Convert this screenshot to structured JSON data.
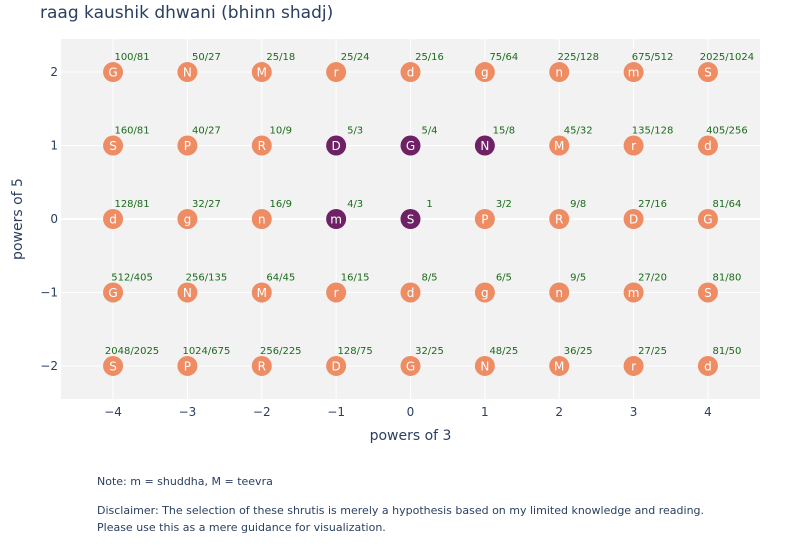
{
  "title": "raag kaushik dhwani (bhinn shadj)",
  "note": "Note: m = shuddha, M = teevra",
  "disclaimer_line1": "Disclaimer: The selection of these shrutis is merely a hypothesis based on my limited knowledge and reading.",
  "disclaimer_line2": "Please use this as a mere guidance for visualization.",
  "colors": {
    "plot_bg": "#f2f2f2",
    "grid": "#ffffff",
    "unselected": "#ee8c64",
    "selected": "#6e2164",
    "ratio_text": "#1b6b1b",
    "text": "#2a3f5f"
  },
  "chart_data": {
    "type": "scatter",
    "xlabel": "powers of 3",
    "ylabel": "powers of 5",
    "xlim": [
      -4.7,
      4.7
    ],
    "ylim": [
      -2.45,
      2.45
    ],
    "xticks": [
      -4,
      -3,
      -2,
      -1,
      0,
      1,
      2,
      3,
      4
    ],
    "yticks": [
      -2,
      -1,
      0,
      1,
      2
    ],
    "xtick_labels": [
      "−4",
      "−3",
      "−2",
      "−1",
      "0",
      "1",
      "2",
      "3",
      "4"
    ],
    "ytick_labels": [
      "−2",
      "−1",
      "0",
      "1",
      "2"
    ],
    "grid": true,
    "legend": false,
    "points": [
      {
        "x": -4,
        "y": 2,
        "swara": "G",
        "ratio": "100/81",
        "selected": false
      },
      {
        "x": -3,
        "y": 2,
        "swara": "N",
        "ratio": "50/27",
        "selected": false
      },
      {
        "x": -2,
        "y": 2,
        "swara": "M",
        "ratio": "25/18",
        "selected": false
      },
      {
        "x": -1,
        "y": 2,
        "swara": "r",
        "ratio": "25/24",
        "selected": false
      },
      {
        "x": 0,
        "y": 2,
        "swara": "d",
        "ratio": "25/16",
        "selected": false
      },
      {
        "x": 1,
        "y": 2,
        "swara": "g",
        "ratio": "75/64",
        "selected": false
      },
      {
        "x": 2,
        "y": 2,
        "swara": "n",
        "ratio": "225/128",
        "selected": false
      },
      {
        "x": 3,
        "y": 2,
        "swara": "m",
        "ratio": "675/512",
        "selected": false
      },
      {
        "x": 4,
        "y": 2,
        "swara": "S",
        "ratio": "2025/1024",
        "selected": false
      },
      {
        "x": -4,
        "y": 1,
        "swara": "S",
        "ratio": "160/81",
        "selected": false
      },
      {
        "x": -3,
        "y": 1,
        "swara": "P",
        "ratio": "40/27",
        "selected": false
      },
      {
        "x": -2,
        "y": 1,
        "swara": "R",
        "ratio": "10/9",
        "selected": false
      },
      {
        "x": -1,
        "y": 1,
        "swara": "D",
        "ratio": "5/3",
        "selected": true
      },
      {
        "x": 0,
        "y": 1,
        "swara": "G",
        "ratio": "5/4",
        "selected": true
      },
      {
        "x": 1,
        "y": 1,
        "swara": "N",
        "ratio": "15/8",
        "selected": true
      },
      {
        "x": 2,
        "y": 1,
        "swara": "M",
        "ratio": "45/32",
        "selected": false
      },
      {
        "x": 3,
        "y": 1,
        "swara": "r",
        "ratio": "135/128",
        "selected": false
      },
      {
        "x": 4,
        "y": 1,
        "swara": "d",
        "ratio": "405/256",
        "selected": false
      },
      {
        "x": -4,
        "y": 0,
        "swara": "d",
        "ratio": "128/81",
        "selected": false
      },
      {
        "x": -3,
        "y": 0,
        "swara": "g",
        "ratio": "32/27",
        "selected": false
      },
      {
        "x": -2,
        "y": 0,
        "swara": "n",
        "ratio": "16/9",
        "selected": false
      },
      {
        "x": -1,
        "y": 0,
        "swara": "m",
        "ratio": "4/3",
        "selected": true
      },
      {
        "x": 0,
        "y": 0,
        "swara": "S",
        "ratio": "1",
        "selected": true
      },
      {
        "x": 1,
        "y": 0,
        "swara": "P",
        "ratio": "3/2",
        "selected": false
      },
      {
        "x": 2,
        "y": 0,
        "swara": "R",
        "ratio": "9/8",
        "selected": false
      },
      {
        "x": 3,
        "y": 0,
        "swara": "D",
        "ratio": "27/16",
        "selected": false
      },
      {
        "x": 4,
        "y": 0,
        "swara": "G",
        "ratio": "81/64",
        "selected": false
      },
      {
        "x": -4,
        "y": -1,
        "swara": "G",
        "ratio": "512/405",
        "selected": false
      },
      {
        "x": -3,
        "y": -1,
        "swara": "N",
        "ratio": "256/135",
        "selected": false
      },
      {
        "x": -2,
        "y": -1,
        "swara": "M",
        "ratio": "64/45",
        "selected": false
      },
      {
        "x": -1,
        "y": -1,
        "swara": "r",
        "ratio": "16/15",
        "selected": false
      },
      {
        "x": 0,
        "y": -1,
        "swara": "d",
        "ratio": "8/5",
        "selected": false
      },
      {
        "x": 1,
        "y": -1,
        "swara": "g",
        "ratio": "6/5",
        "selected": false
      },
      {
        "x": 2,
        "y": -1,
        "swara": "n",
        "ratio": "9/5",
        "selected": false
      },
      {
        "x": 3,
        "y": -1,
        "swara": "m",
        "ratio": "27/20",
        "selected": false
      },
      {
        "x": 4,
        "y": -1,
        "swara": "S",
        "ratio": "81/80",
        "selected": false
      },
      {
        "x": -4,
        "y": -2,
        "swara": "S",
        "ratio": "2048/2025",
        "selected": false
      },
      {
        "x": -3,
        "y": -2,
        "swara": "P",
        "ratio": "1024/675",
        "selected": false
      },
      {
        "x": -2,
        "y": -2,
        "swara": "R",
        "ratio": "256/225",
        "selected": false
      },
      {
        "x": -1,
        "y": -2,
        "swara": "D",
        "ratio": "128/75",
        "selected": false
      },
      {
        "x": 0,
        "y": -2,
        "swara": "G",
        "ratio": "32/25",
        "selected": false
      },
      {
        "x": 1,
        "y": -2,
        "swara": "N",
        "ratio": "48/25",
        "selected": false
      },
      {
        "x": 2,
        "y": -2,
        "swara": "M",
        "ratio": "36/25",
        "selected": false
      },
      {
        "x": 3,
        "y": -2,
        "swara": "r",
        "ratio": "27/25",
        "selected": false
      },
      {
        "x": 4,
        "y": -2,
        "swara": "d",
        "ratio": "81/50",
        "selected": false
      }
    ]
  }
}
